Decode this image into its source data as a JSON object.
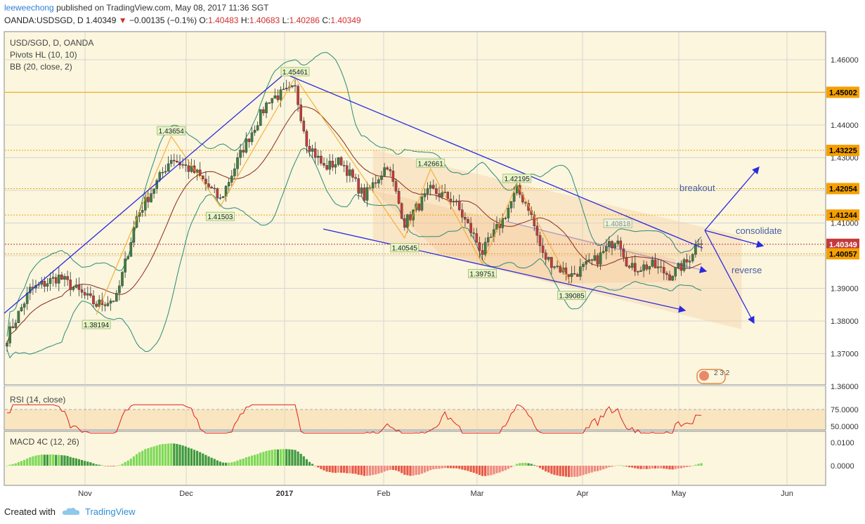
{
  "header": {
    "user": "leeweechong",
    "published": "published on TradingView.com, May 08, 2017 11:36 SGT",
    "symbol": "OANDA:USDSGD, D",
    "last": "1.40349",
    "change": "−0.00135 (−0.1%)",
    "o_label": "O:",
    "o_val": "1.40483",
    "h_label": "H:",
    "h_val": "1.40683",
    "l_label": "L:",
    "l_val": "1.40286",
    "c_label": "C:",
    "c_val": "1.40349"
  },
  "legend": {
    "title": "USD/SGD, D, OANDA",
    "pivots": "Pivots HL (10, 10)",
    "bb": "BB (20, close, 2)",
    "rsi": "RSI (14, close)",
    "macd": "MACD 4C (12, 26)"
  },
  "footer": {
    "created": "Created with",
    "brand": "TradingView"
  },
  "colors": {
    "bg": "#fbf6dd",
    "grid": "#d5d5d5",
    "up": "#3f7f3f",
    "down": "#c43a3a",
    "bb_band": "#2a8a7a",
    "bb_mid": "#8b2a20",
    "trend": "#2a2ae0",
    "zigzag": "#f5a623",
    "channel": "#f7c99a",
    "hline": "#e08a00",
    "rsi": "#e02020",
    "macd_up": "#7ed957",
    "macd_down": "#e85a4a"
  },
  "chart_data": {
    "type": "candlestick",
    "x_labels": [
      "Nov",
      "Dec",
      "2017",
      "Feb",
      "Mar",
      "Apr",
      "May",
      "Jun"
    ],
    "y_ticks": [
      "1.46000",
      "1.45000",
      "1.44000",
      "1.43000",
      "1.42000",
      "1.41000",
      "1.40000",
      "1.39000",
      "1.38000",
      "1.37000",
      "1.36000"
    ],
    "price_tags": [
      {
        "label": "1.45002",
        "value": 1.45002,
        "color": "#f5a000"
      },
      {
        "label": "1.43225",
        "value": 1.43225,
        "color": "#f5a000"
      },
      {
        "label": "1.42054",
        "value": 1.42054,
        "color": "#f5a000"
      },
      {
        "label": "1.41244",
        "value": 1.41244,
        "color": "#f5a000"
      },
      {
        "label": "1.40349",
        "value": 1.40349,
        "color": "#c43a3a"
      },
      {
        "label": "1.40057",
        "value": 1.40057,
        "color": "#f5a000"
      }
    ],
    "pivots": [
      {
        "label": "1.45461",
        "value": 1.45461,
        "day": 100,
        "pos": "above"
      },
      {
        "label": "1.43654",
        "value": 1.43654,
        "day": 57,
        "pos": "above"
      },
      {
        "label": "1.42661",
        "value": 1.42661,
        "day": 147,
        "pos": "above"
      },
      {
        "label": "1.42195",
        "value": 1.42195,
        "day": 177,
        "pos": "above"
      },
      {
        "label": "1.40818",
        "value": 1.40818,
        "day": 212,
        "pos": "above",
        "faded": true
      },
      {
        "label": "1.41503",
        "value": 1.41503,
        "day": 74,
        "pos": "below"
      },
      {
        "label": "1.38194",
        "value": 1.38194,
        "day": 31,
        "pos": "below"
      },
      {
        "label": "1.40545",
        "value": 1.40545,
        "day": 138,
        "pos": "below"
      },
      {
        "label": "1.39751",
        "value": 1.39751,
        "day": 165,
        "pos": "below"
      },
      {
        "label": "1.39085",
        "value": 1.39085,
        "day": 196,
        "pos": "below"
      }
    ],
    "annotations": [
      "breakout",
      "consolidate",
      "reverse"
    ],
    "rsi_ticks": [
      "75.0000",
      "50.0000"
    ],
    "macd_ticks": [
      "0.0100",
      "0.0000"
    ],
    "anchors": [
      {
        "day": 0,
        "close": 1.375
      },
      {
        "day": 8,
        "close": 1.3895
      },
      {
        "day": 18,
        "close": 1.3935
      },
      {
        "day": 31,
        "close": 1.385
      },
      {
        "day": 38,
        "close": 1.387
      },
      {
        "day": 45,
        "close": 1.412
      },
      {
        "day": 57,
        "close": 1.43
      },
      {
        "day": 66,
        "close": 1.425
      },
      {
        "day": 74,
        "close": 1.417
      },
      {
        "day": 82,
        "close": 1.433
      },
      {
        "day": 91,
        "close": 1.448
      },
      {
        "day": 100,
        "close": 1.451
      },
      {
        "day": 104,
        "close": 1.435
      },
      {
        "day": 110,
        "close": 1.427
      },
      {
        "day": 116,
        "close": 1.429
      },
      {
        "day": 124,
        "close": 1.418
      },
      {
        "day": 132,
        "close": 1.428
      },
      {
        "day": 138,
        "close": 1.41
      },
      {
        "day": 147,
        "close": 1.42
      },
      {
        "day": 155,
        "close": 1.417
      },
      {
        "day": 162,
        "close": 1.406
      },
      {
        "day": 165,
        "close": 1.401
      },
      {
        "day": 172,
        "close": 1.411
      },
      {
        "day": 177,
        "close": 1.42
      },
      {
        "day": 181,
        "close": 1.415
      },
      {
        "day": 186,
        "close": 1.4
      },
      {
        "day": 192,
        "close": 1.396
      },
      {
        "day": 196,
        "close": 1.394
      },
      {
        "day": 205,
        "close": 1.399
      },
      {
        "day": 212,
        "close": 1.406
      },
      {
        "day": 216,
        "close": 1.396
      },
      {
        "day": 224,
        "close": 1.397
      },
      {
        "day": 230,
        "close": 1.394
      },
      {
        "day": 236,
        "close": 1.398
      },
      {
        "day": 240,
        "close": 1.4048
      },
      {
        "day": 241,
        "close": 1.4035
      }
    ]
  }
}
